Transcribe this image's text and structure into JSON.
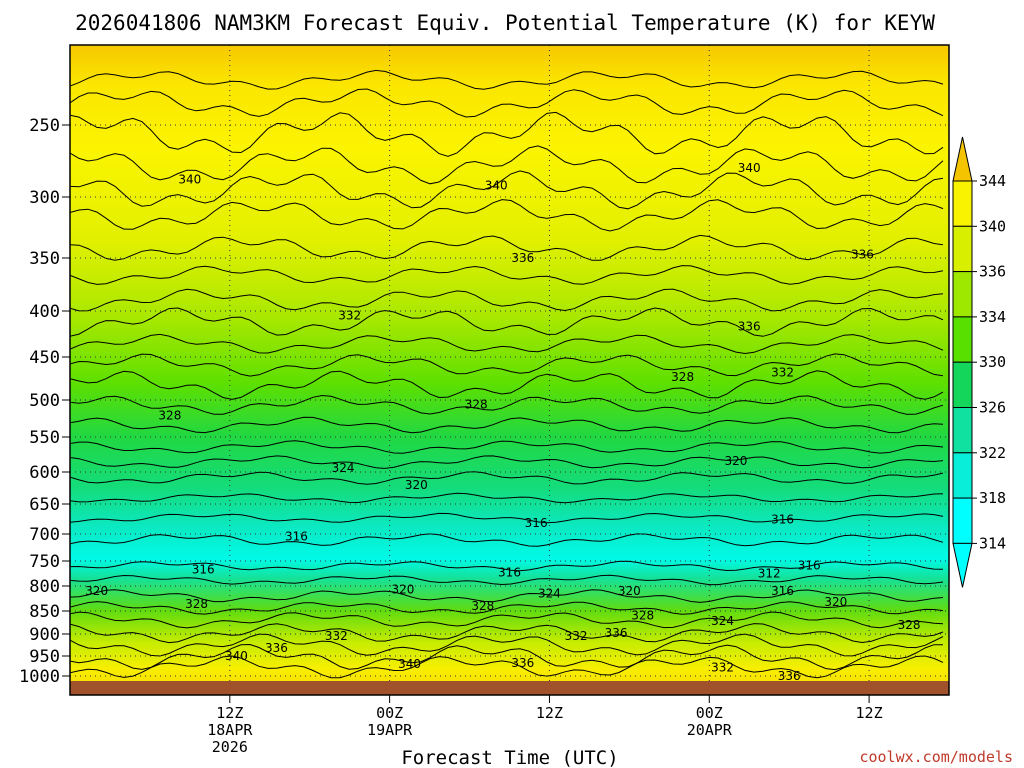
{
  "chart_data": {
    "type": "heatmap",
    "title": "2026041806 NAM3KM Forecast Equiv. Potential Temperature (K) for KEYW",
    "xlabel": "Forecast Time (UTC)",
    "ylabel": "",
    "x_range_hours": [
      -6,
      60
    ],
    "x_ticks": [
      {
        "hour": 6,
        "labels": [
          "12Z",
          "18APR",
          "2026"
        ]
      },
      {
        "hour": 18,
        "labels": [
          "00Z",
          "19APR"
        ]
      },
      {
        "hour": 30,
        "labels": [
          "12Z"
        ]
      },
      {
        "hour": 42,
        "labels": [
          "00Z",
          "20APR"
        ]
      },
      {
        "hour": 54,
        "labels": [
          "12Z"
        ]
      }
    ],
    "y_ticks": [
      250,
      300,
      350,
      400,
      450,
      500,
      550,
      600,
      650,
      700,
      750,
      800,
      850,
      900,
      950,
      1000
    ],
    "ylim": [
      200,
      1030
    ],
    "grid": true,
    "colorbar": {
      "values": [
        344,
        340,
        336,
        334,
        330,
        326,
        322,
        318,
        314
      ],
      "colors": [
        "#f5c400",
        "#f9f200",
        "#d8f000",
        "#9ee800",
        "#58e000",
        "#14d65a",
        "#10e0a0",
        "#08eed8",
        "#00ffff"
      ]
    },
    "isotherm_labels": [
      {
        "value": "340",
        "hour": 3,
        "pressure": 288
      },
      {
        "value": "340",
        "hour": 26,
        "pressure": 292
      },
      {
        "value": "340",
        "hour": 45,
        "pressure": 280
      },
      {
        "value": "336",
        "hour": 28,
        "pressure": 350
      },
      {
        "value": "336",
        "hour": 53.5,
        "pressure": 347
      },
      {
        "value": "336",
        "hour": 45,
        "pressure": 417
      },
      {
        "value": "332",
        "hour": 15,
        "pressure": 405
      },
      {
        "value": "332",
        "hour": 47.5,
        "pressure": 468
      },
      {
        "value": "328",
        "hour": 1.5,
        "pressure": 521
      },
      {
        "value": "328",
        "hour": 24.5,
        "pressure": 506
      },
      {
        "value": "328",
        "hour": 40,
        "pressure": 473
      },
      {
        "value": "324",
        "hour": 14.5,
        "pressure": 594
      },
      {
        "value": "320",
        "hour": 20,
        "pressure": 620
      },
      {
        "value": "320",
        "hour": 44,
        "pressure": 584
      },
      {
        "value": "316",
        "hour": 29,
        "pressure": 682
      },
      {
        "value": "316",
        "hour": 47.5,
        "pressure": 676
      },
      {
        "value": "316",
        "hour": 11,
        "pressure": 705
      },
      {
        "value": "316",
        "hour": 4,
        "pressure": 767
      },
      {
        "value": "316",
        "hour": 27,
        "pressure": 773
      },
      {
        "value": "316",
        "hour": 49.5,
        "pressure": 759
      },
      {
        "value": "316",
        "hour": 47.5,
        "pressure": 810
      },
      {
        "value": "312",
        "hour": 46.5,
        "pressure": 775
      },
      {
        "value": "320",
        "hour": -4,
        "pressure": 810
      },
      {
        "value": "320",
        "hour": 19,
        "pressure": 807
      },
      {
        "value": "320",
        "hour": 36,
        "pressure": 810
      },
      {
        "value": "320",
        "hour": 51.5,
        "pressure": 832
      },
      {
        "value": "324",
        "hour": 30,
        "pressure": 815
      },
      {
        "value": "324",
        "hour": 43,
        "pressure": 872
      },
      {
        "value": "328",
        "hour": 3.5,
        "pressure": 836
      },
      {
        "value": "328",
        "hour": 25,
        "pressure": 840
      },
      {
        "value": "328",
        "hour": 37,
        "pressure": 860
      },
      {
        "value": "328",
        "hour": 57,
        "pressure": 880
      },
      {
        "value": "332",
        "hour": 14,
        "pressure": 905
      },
      {
        "value": "332",
        "hour": 32,
        "pressure": 905
      },
      {
        "value": "332",
        "hour": 43,
        "pressure": 979
      },
      {
        "value": "336",
        "hour": 35,
        "pressure": 898
      },
      {
        "value": "336",
        "hour": 9.5,
        "pressure": 932
      },
      {
        "value": "336",
        "hour": 28,
        "pressure": 967
      },
      {
        "value": "336",
        "hour": 48,
        "pressure": 1000
      },
      {
        "value": "340",
        "hour": 6.5,
        "pressure": 950
      },
      {
        "value": "340",
        "hour": 19.5,
        "pressure": 970
      }
    ]
  },
  "credit": "coolwx.com/models"
}
